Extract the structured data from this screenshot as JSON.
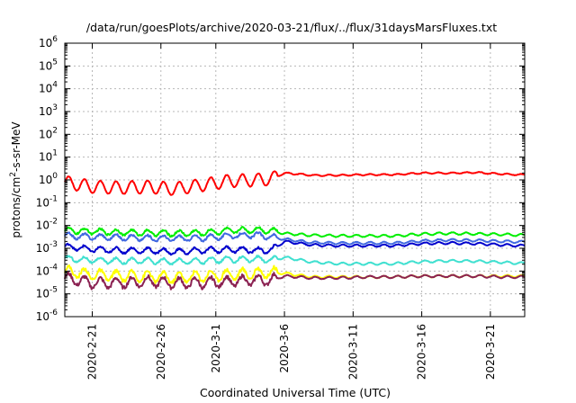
{
  "chart_data": {
    "type": "line",
    "title": "/data/run/goesPlots/archive/2020-03-21/flux/../flux/31daysMarsFluxes.txt",
    "xlabel": "Coordinated Universal Time (UTC)",
    "ylabel": {
      "base": "protons/cm",
      "exp": "2",
      "rest": "-s-sr-MeV"
    },
    "y_scale": "log",
    "ylim": [
      1e-06,
      1000000.0
    ],
    "xlim": [
      "2020-02-19",
      "2020-03-23"
    ],
    "x_ticks": [
      "2020-2-21",
      "2020-2-26",
      "2020-3-1",
      "2020-3-6",
      "2020-3-11",
      "2020-3-16",
      "2020-3-21"
    ],
    "y_ticks": [
      {
        "base": "10",
        "exp": "-6"
      },
      {
        "base": "10",
        "exp": "-5"
      },
      {
        "base": "10",
        "exp": "-4"
      },
      {
        "base": "10",
        "exp": "-3"
      },
      {
        "base": "10",
        "exp": "-2"
      },
      {
        "base": "10",
        "exp": "-1"
      },
      {
        "base": "10",
        "exp": "0"
      },
      {
        "base": "10",
        "exp": "1"
      },
      {
        "base": "10",
        "exp": "2"
      },
      {
        "base": "10",
        "exp": "3"
      },
      {
        "base": "10",
        "exp": "4"
      },
      {
        "base": "10",
        "exp": "5"
      },
      {
        "base": "10",
        "exp": "6"
      }
    ],
    "grid": true,
    "x_dates": [
      "2020-02-19",
      "2020-02-21",
      "2020-02-23",
      "2020-02-25",
      "2020-02-27",
      "2020-02-29",
      "2020-03-02",
      "2020-03-04",
      "2020-03-05",
      "2020-03-06",
      "2020-03-08",
      "2020-03-10",
      "2020-03-12",
      "2020-03-14",
      "2020-03-16",
      "2020-03-18",
      "2020-03-20",
      "2020-03-22",
      "2020-03-23"
    ],
    "series": [
      {
        "color": "#ff0000",
        "values": [
          0.8,
          0.5,
          0.45,
          0.5,
          0.4,
          0.6,
          0.9,
          1.0,
          1.1,
          2.0,
          1.6,
          1.6,
          1.7,
          1.7,
          2.0,
          2.0,
          2.1,
          1.8,
          1.7
        ]
      },
      {
        "color": "#00ee00",
        "values": [
          0.006,
          0.0055,
          0.005,
          0.0048,
          0.0045,
          0.0048,
          0.006,
          0.0065,
          0.006,
          0.0045,
          0.0037,
          0.0035,
          0.0035,
          0.0035,
          0.0042,
          0.0045,
          0.0043,
          0.004,
          0.0038
        ]
      },
      {
        "color": "#4169e1",
        "values": [
          0.0035,
          0.0032,
          0.003,
          0.0028,
          0.0027,
          0.0028,
          0.0035,
          0.0038,
          0.0032,
          0.0025,
          0.0018,
          0.0017,
          0.0017,
          0.0017,
          0.0021,
          0.0023,
          0.0022,
          0.002,
          0.0019
        ]
      },
      {
        "color": "#0000cd",
        "values": [
          0.0012,
          0.0009,
          0.0008,
          0.0008,
          0.0007,
          0.0008,
          0.0009,
          0.0008,
          0.0008,
          0.002,
          0.0014,
          0.0013,
          0.0013,
          0.0013,
          0.0016,
          0.0017,
          0.0016,
          0.0014,
          0.0013
        ]
      },
      {
        "color": "#40e0d0",
        "values": [
          0.00035,
          0.0003,
          0.00028,
          0.00028,
          0.00026,
          0.00028,
          0.00032,
          0.00034,
          0.0003,
          0.0004,
          0.00025,
          0.00021,
          0.00021,
          0.00021,
          0.00026,
          0.00028,
          0.00027,
          0.00024,
          0.00022
        ]
      },
      {
        "color": "#ffff00",
        "values": [
          0.0001,
          7e-05,
          6e-05,
          6e-05,
          5e-05,
          6e-05,
          7e-05,
          8e-05,
          9e-05,
          8e-05,
          5.5e-05,
          5.5e-05,
          5.5e-05,
          5.5e-05,
          6e-05,
          6e-05,
          6e-05,
          6e-05,
          6e-05
        ]
      },
      {
        "color": "#8b2252",
        "values": [
          5e-05,
          3e-05,
          3e-05,
          3.5e-05,
          3e-05,
          3e-05,
          3.5e-05,
          4e-05,
          4e-05,
          6e-05,
          5e-05,
          5e-05,
          5.5e-05,
          5.5e-05,
          6e-05,
          6e-05,
          6e-05,
          5.5e-05,
          5.5e-05
        ]
      }
    ]
  }
}
